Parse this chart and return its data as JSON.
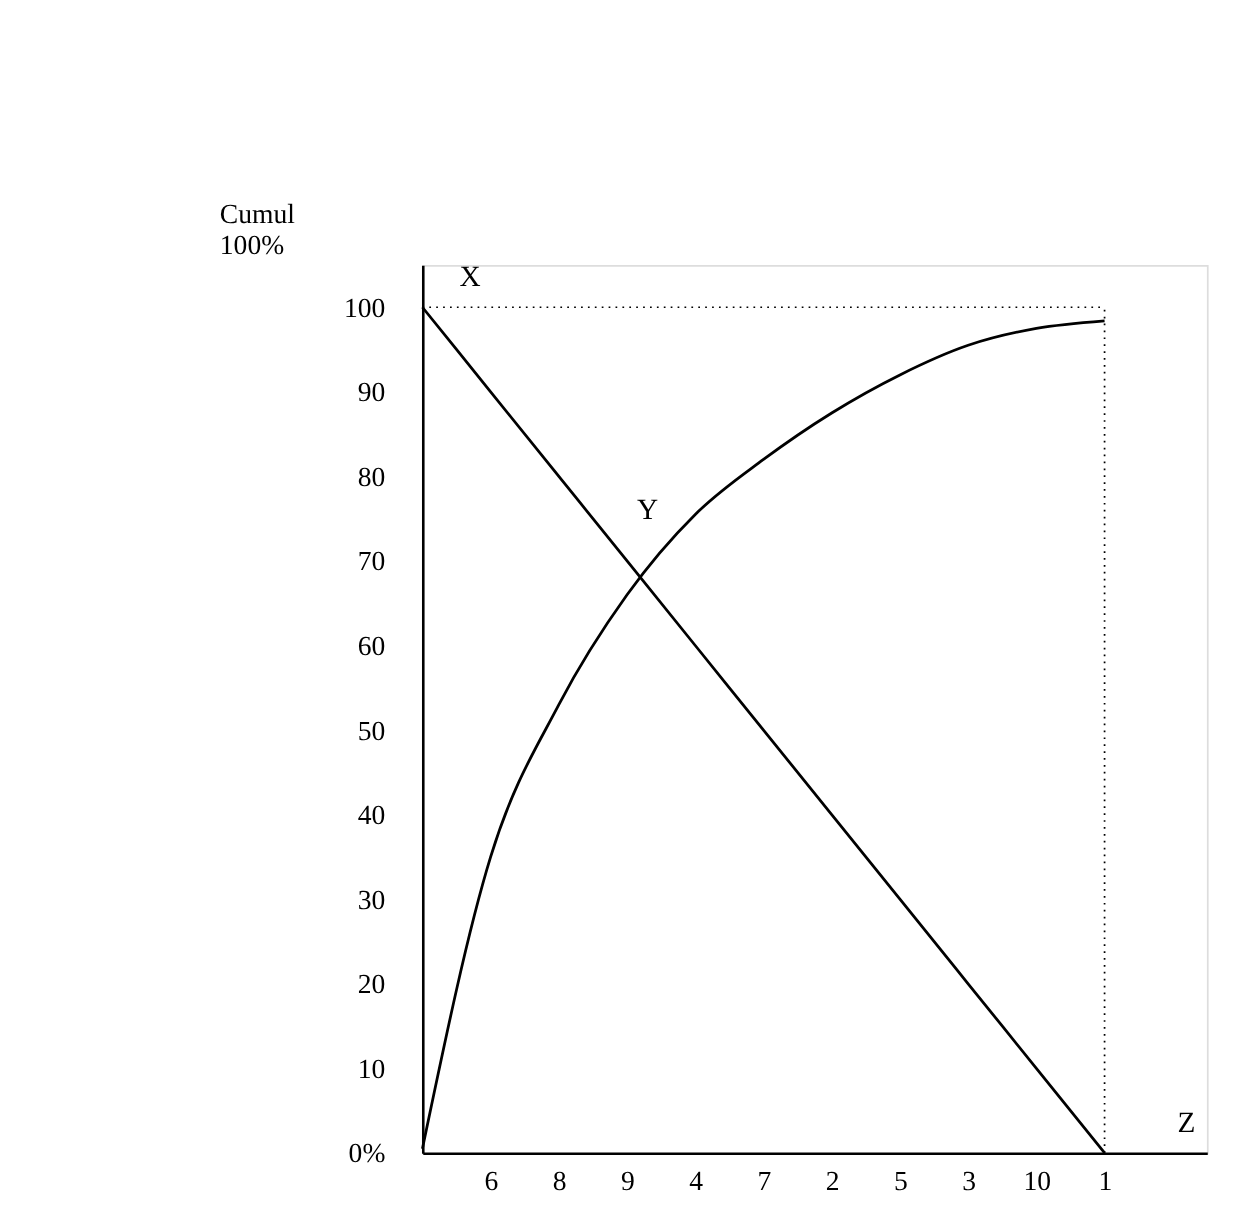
{
  "chart_data": {
    "type": "line",
    "ylabel": "Cumul\n100%",
    "categories": [
      null,
      "6",
      "8",
      "9",
      "4",
      "7",
      "2",
      "5",
      "3",
      "10",
      "1"
    ],
    "ylim": [
      0,
      105
    ],
    "yticks": [
      {
        "value": 0,
        "label": "0%"
      },
      10,
      20,
      30,
      40,
      50,
      60,
      70,
      80,
      90,
      100
    ],
    "series": [
      {
        "color": "#000000",
        "values": [
          0.5,
          35,
          53,
          66,
          75.5,
          82,
          87.5,
          92,
          95.5,
          97.5,
          98.4
        ]
      },
      {
        "color": "#000000",
        "values": [
          100,
          90,
          80,
          70,
          60,
          50,
          40,
          30,
          20,
          10,
          0
        ]
      }
    ],
    "ref_lines": [
      {
        "axis": "y",
        "value": 100,
        "line_style": "dotted",
        "color": "#000000"
      },
      {
        "axis": "x",
        "value": "1",
        "line_style": "dotted",
        "color": "#000000"
      }
    ],
    "annotations": [
      "X",
      "Y",
      "Z"
    ],
    "marker": "none",
    "line_style": "solid"
  }
}
